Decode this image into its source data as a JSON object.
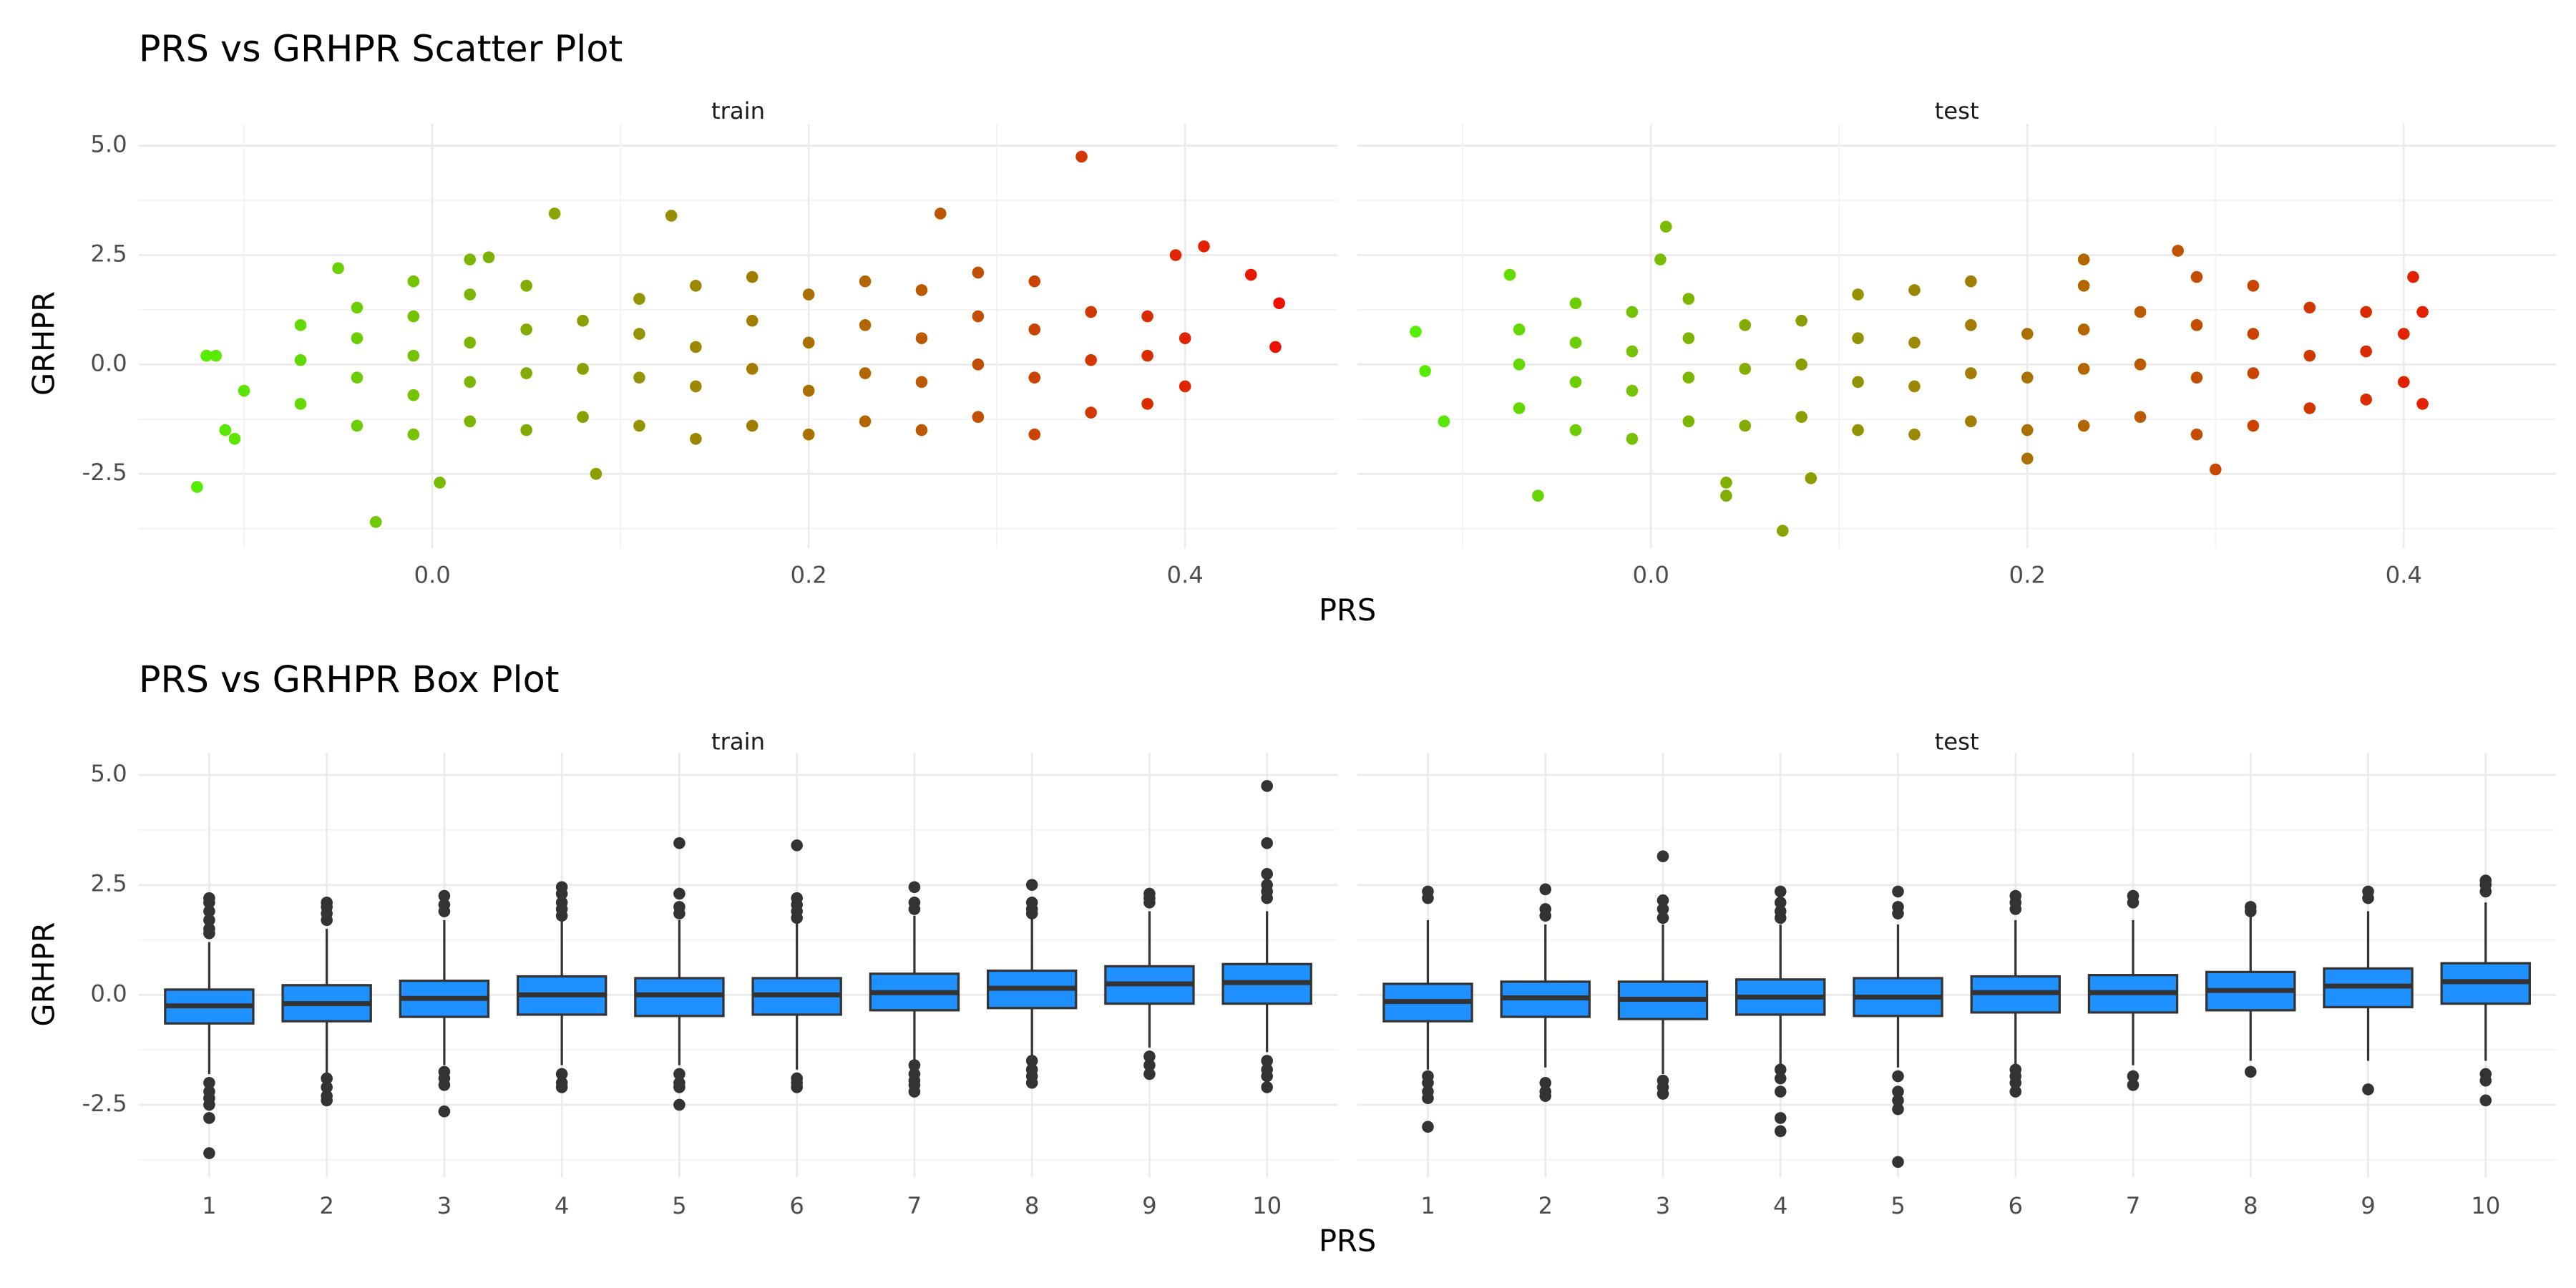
{
  "chart_data": [
    {
      "type": "scatter",
      "title": "PRS vs GRHPR Scatter Plot",
      "xlabel": "PRS",
      "ylabel": "GRHPR",
      "color_low": "#55ee00",
      "color_high": "#ee1100",
      "ylim": [
        -4.2,
        5.5
      ],
      "yticks": [
        -2.5,
        {
          "value": 0,
          "label": "0.0"
        },
        2.5,
        {
          "value": 5,
          "label": "5.0"
        }
      ],
      "yminor": [
        -3.75,
        -1.25,
        1.25,
        3.75
      ],
      "xlim": [
        -0.156,
        0.481
      ],
      "xticks": [
        {
          "value": 0,
          "label": "0.0"
        },
        0.2,
        0.4
      ],
      "xminor": [
        -0.1,
        0.1,
        0.3
      ],
      "grid": true,
      "facets": [
        {
          "name": "train",
          "x": [
            -0.07,
            -0.07,
            -0.07,
            -0.04,
            -0.04,
            -0.04,
            -0.04,
            -0.01,
            -0.01,
            -0.01,
            -0.01,
            -0.01,
            0.02,
            0.02,
            0.02,
            0.02,
            0.05,
            0.05,
            0.05,
            0.05,
            0.08,
            0.08,
            0.08,
            0.11,
            0.11,
            0.11,
            0.11,
            0.14,
            0.14,
            0.14,
            0.14,
            0.17,
            0.17,
            0.17,
            0.17,
            0.2,
            0.2,
            0.2,
            0.2,
            0.23,
            0.23,
            0.23,
            0.23,
            0.26,
            0.26,
            0.26,
            0.26,
            0.29,
            0.29,
            0.29,
            0.29,
            0.32,
            0.32,
            0.32,
            0.32,
            0.35,
            0.35,
            0.35,
            0.38,
            0.38,
            0.38,
            0.4,
            0.4,
            -0.12,
            -0.115,
            -0.125,
            -0.11,
            -0.105,
            -0.1,
            0.065,
            0.127,
            0.27,
            0.345,
            -0.03,
            0.004,
            0.087,
            0.45,
            0.448,
            0.435,
            0.41,
            0.395,
            -0.05,
            0.02,
            0.03
          ],
          "y": [
            -0.9,
            0.1,
            0.9,
            -1.4,
            -0.3,
            0.6,
            1.3,
            -1.6,
            -0.7,
            0.2,
            1.1,
            1.9,
            -1.3,
            -0.4,
            0.5,
            1.6,
            -1.5,
            -0.2,
            0.8,
            1.8,
            -1.2,
            -0.1,
            1.0,
            -1.4,
            -0.3,
            0.7,
            1.5,
            -1.7,
            -0.5,
            0.4,
            1.8,
            -1.4,
            -0.1,
            1.0,
            2.0,
            -1.6,
            -0.6,
            0.5,
            1.6,
            -1.3,
            -0.2,
            0.9,
            1.9,
            -1.5,
            -0.4,
            0.6,
            1.7,
            -1.2,
            0.0,
            1.1,
            2.1,
            -1.6,
            -0.3,
            0.8,
            1.9,
            -1.1,
            0.1,
            1.2,
            -0.9,
            0.2,
            1.1,
            -0.5,
            0.6,
            0.2,
            0.2,
            -2.8,
            -1.5,
            -1.7,
            -0.6,
            3.45,
            3.4,
            3.45,
            4.75,
            -3.6,
            -2.7,
            -2.5,
            1.4,
            0.4,
            2.05,
            2.7,
            2.5,
            2.2,
            2.4,
            2.45
          ]
        },
        {
          "name": "test",
          "x": [
            -0.07,
            -0.07,
            -0.07,
            -0.04,
            -0.04,
            -0.04,
            -0.04,
            -0.01,
            -0.01,
            -0.01,
            -0.01,
            0.02,
            0.02,
            0.02,
            0.02,
            0.05,
            0.05,
            0.05,
            0.08,
            0.08,
            0.08,
            0.11,
            0.11,
            0.11,
            0.11,
            0.14,
            0.14,
            0.14,
            0.14,
            0.17,
            0.17,
            0.17,
            0.17,
            0.2,
            0.2,
            0.2,
            0.23,
            0.23,
            0.23,
            0.23,
            0.26,
            0.26,
            0.26,
            0.29,
            0.29,
            0.29,
            0.29,
            0.32,
            0.32,
            0.32,
            0.32,
            0.35,
            0.35,
            0.35,
            0.38,
            0.38,
            0.38,
            0.4,
            0.4,
            -0.125,
            -0.12,
            -0.11,
            0.008,
            0.005,
            -0.075,
            -0.06,
            0.07,
            0.085,
            0.04,
            0.04,
            0.28,
            0.3,
            0.405,
            0.41,
            0.41,
            0.23,
            0.2
          ],
          "y": [
            -1.0,
            0.0,
            0.8,
            -1.5,
            -0.4,
            0.5,
            1.4,
            -1.7,
            -0.6,
            0.3,
            1.2,
            -1.3,
            -0.3,
            0.6,
            1.5,
            -1.4,
            -0.1,
            0.9,
            -1.2,
            0.0,
            1.0,
            -1.5,
            -0.4,
            0.6,
            1.6,
            -1.6,
            -0.5,
            0.5,
            1.7,
            -1.3,
            -0.2,
            0.9,
            1.9,
            -1.5,
            -0.3,
            0.7,
            -1.4,
            -0.1,
            0.8,
            1.8,
            -1.2,
            0.0,
            1.2,
            -1.6,
            -0.3,
            0.9,
            2.0,
            -1.4,
            -0.2,
            0.7,
            1.8,
            -1.0,
            0.2,
            1.3,
            -0.8,
            0.3,
            1.2,
            -0.4,
            0.7,
            0.75,
            -0.15,
            -1.3,
            3.15,
            2.4,
            2.05,
            -3.0,
            -3.8,
            -2.6,
            -2.7,
            -3.0,
            2.6,
            -2.4,
            2.0,
            1.2,
            -0.9,
            2.4,
            -2.15
          ]
        }
      ]
    },
    {
      "type": "box",
      "title": "PRS vs GRHPR Box Plot",
      "xlabel": "PRS",
      "ylabel": "GRHPR",
      "color": "#1e90ff",
      "ylim": [
        -4.15,
        5.5
      ],
      "yticks": [
        -2.5,
        {
          "value": 0,
          "label": "0.0"
        },
        2.5,
        {
          "value": 5,
          "label": "5.0"
        }
      ],
      "yminor": [
        -3.75,
        -1.25,
        1.25,
        3.75
      ],
      "grid": true,
      "facets": [
        {
          "name": "train",
          "categories": [
            "1",
            "2",
            "3",
            "4",
            "5",
            "6",
            "7",
            "8",
            "9",
            "10"
          ],
          "low": [
            -1.8,
            -1.8,
            -1.6,
            -1.6,
            -1.6,
            -1.7,
            -1.5,
            -1.4,
            -1.2,
            -1.3
          ],
          "q1": [
            -0.65,
            -0.6,
            -0.5,
            -0.45,
            -0.48,
            -0.45,
            -0.35,
            -0.3,
            -0.2,
            -0.2
          ],
          "median": [
            -0.25,
            -0.2,
            -0.08,
            0.0,
            0.0,
            0.0,
            0.05,
            0.15,
            0.25,
            0.28
          ],
          "q3": [
            0.12,
            0.22,
            0.32,
            0.42,
            0.38,
            0.38,
            0.48,
            0.55,
            0.65,
            0.7
          ],
          "high": [
            1.2,
            1.5,
            1.7,
            1.7,
            1.7,
            1.7,
            1.8,
            1.8,
            1.9,
            1.9
          ],
          "outliers": [
            [
              2.2,
              2.1,
              1.9,
              1.7,
              1.5,
              1.4,
              -2.0,
              -2.2,
              -2.35,
              -2.5,
              -2.8,
              -3.6
            ],
            [
              2.1,
              2.0,
              1.85,
              1.7,
              -1.9,
              -2.1,
              -2.3,
              -2.4
            ],
            [
              2.25,
              2.05,
              1.9,
              -1.75,
              -1.9,
              -2.05,
              -2.65
            ],
            [
              2.45,
              2.3,
              2.1,
              1.95,
              1.8,
              -1.8,
              -2.0,
              -2.1
            ],
            [
              3.45,
              2.3,
              2.0,
              1.85,
              -1.8,
              -2.0,
              -2.1,
              -2.5
            ],
            [
              3.4,
              2.2,
              2.05,
              1.9,
              1.75,
              -1.9,
              -2.0,
              -2.1
            ],
            [
              2.45,
              2.1,
              1.95,
              -1.6,
              -1.8,
              -1.95,
              -2.05,
              -2.2
            ],
            [
              2.5,
              2.1,
              1.95,
              1.85,
              -1.5,
              -1.7,
              -1.85,
              -2.0
            ],
            [
              2.3,
              2.2,
              2.1,
              -1.4,
              -1.6,
              -1.8
            ],
            [
              4.75,
              3.45,
              2.75,
              2.5,
              2.35,
              2.2,
              -1.5,
              -1.7,
              -1.85,
              -2.1
            ]
          ]
        },
        {
          "name": "test",
          "categories": [
            "1",
            "2",
            "3",
            "4",
            "5",
            "6",
            "7",
            "8",
            "9",
            "10"
          ],
          "low": [
            -1.7,
            -1.65,
            -1.8,
            -1.6,
            -1.65,
            -1.6,
            -1.6,
            -1.5,
            -1.5,
            -1.5
          ],
          "q1": [
            -0.6,
            -0.5,
            -0.55,
            -0.45,
            -0.48,
            -0.4,
            -0.4,
            -0.35,
            -0.28,
            -0.2
          ],
          "median": [
            -0.15,
            -0.07,
            -0.1,
            -0.05,
            -0.05,
            0.05,
            0.05,
            0.1,
            0.2,
            0.3
          ],
          "q3": [
            0.25,
            0.3,
            0.3,
            0.35,
            0.38,
            0.42,
            0.45,
            0.52,
            0.6,
            0.72
          ],
          "high": [
            1.7,
            1.6,
            1.6,
            1.6,
            1.6,
            1.7,
            1.7,
            1.8,
            1.9,
            2.1
          ],
          "outliers": [
            [
              2.35,
              2.2,
              -1.85,
              -2.0,
              -2.2,
              -2.35,
              -3.0
            ],
            [
              2.4,
              1.95,
              1.8,
              -2.0,
              -2.2,
              -2.3
            ],
            [
              3.15,
              2.15,
              1.95,
              1.75,
              -1.95,
              -2.1,
              -2.25
            ],
            [
              2.35,
              2.1,
              1.9,
              1.75,
              -1.7,
              -1.9,
              -2.2,
              -2.8,
              -3.1
            ],
            [
              2.35,
              2.0,
              1.85,
              -1.85,
              -2.2,
              -2.4,
              -2.6,
              -3.8
            ],
            [
              2.25,
              2.1,
              1.95,
              -1.7,
              -1.85,
              -2.0,
              -2.2
            ],
            [
              2.25,
              2.1,
              -1.85,
              -2.05
            ],
            [
              2.0,
              1.9,
              -1.75
            ],
            [
              2.35,
              2.2,
              -2.15
            ],
            [
              2.6,
              2.5,
              2.35,
              -1.8,
              -1.95,
              -2.4
            ]
          ]
        }
      ]
    }
  ]
}
